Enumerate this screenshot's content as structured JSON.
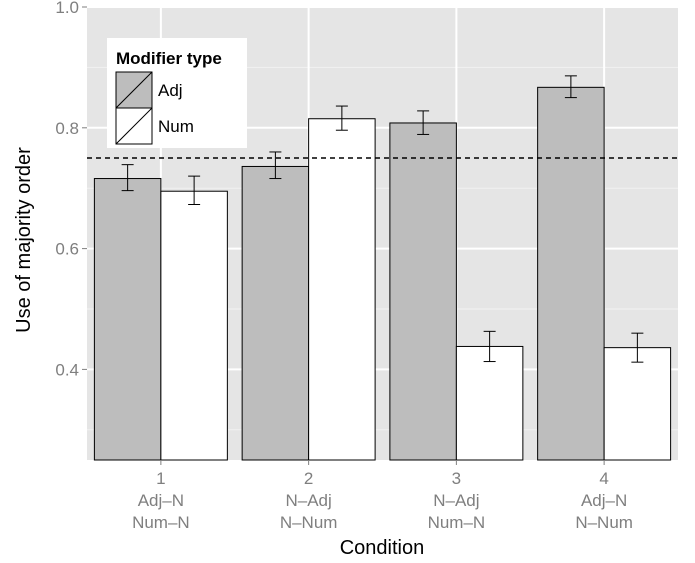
{
  "chart_data": {
    "type": "bar",
    "title": "",
    "xlabel": "Condition",
    "ylabel": "Use of majority order",
    "ylim": [
      0.25,
      1.0
    ],
    "y_ticks": [
      "0.4",
      "0.6",
      "0.8",
      "1.0"
    ],
    "y_tick_values": [
      0.4,
      0.6,
      0.8,
      1.0
    ],
    "grid": true,
    "legend_position": "top-left",
    "categories": [
      {
        "id": "1",
        "line1": "Adj–N",
        "line2": "Num–N"
      },
      {
        "id": "2",
        "line1": "N–Adj",
        "line2": "N–Num"
      },
      {
        "id": "3",
        "line1": "N–Adj",
        "line2": "Num–N"
      },
      {
        "id": "4",
        "line1": "Adj–N",
        "line2": "N–Num"
      }
    ],
    "legend": {
      "title": "Modifier type"
    },
    "series": [
      {
        "name": "Adj",
        "color": "#bdbdbd",
        "values": [
          0.716,
          0.736,
          0.808,
          0.867
        ],
        "error_low": [
          0.696,
          0.716,
          0.789,
          0.85
        ],
        "error_high": [
          0.739,
          0.76,
          0.828,
          0.886
        ]
      },
      {
        "name": "Num",
        "color": "#ffffff",
        "values": [
          0.695,
          0.815,
          0.438,
          0.436
        ],
        "error_low": [
          0.673,
          0.796,
          0.413,
          0.412
        ],
        "error_high": [
          0.72,
          0.836,
          0.463,
          0.46
        ]
      }
    ],
    "reference_line": 0.75,
    "colors": {
      "panel": "#e5e5e5",
      "grid_major": "#ffffff",
      "grid_minor": "#f2f2f2",
      "bar_outline": "#000000",
      "reference_line": "#000000"
    }
  }
}
